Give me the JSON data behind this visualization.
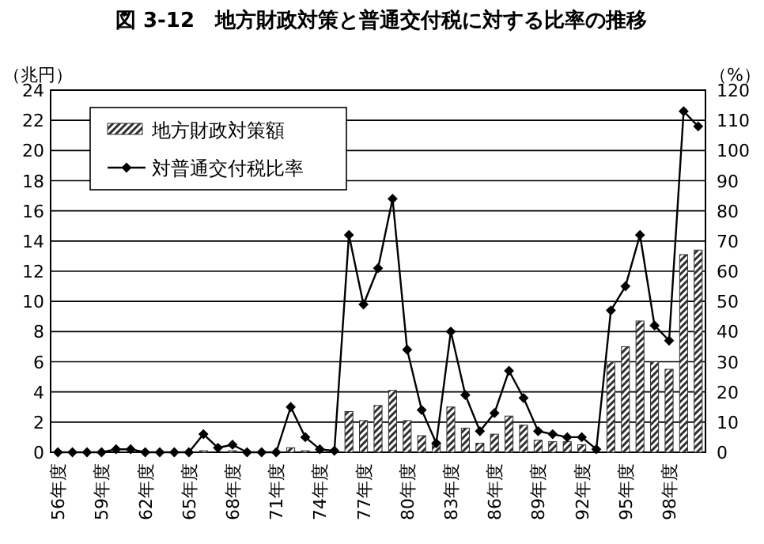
{
  "chart_data": {
    "type": "bar",
    "title": "図 3-12　地方財政対策と普通交付税に対する比率の推移",
    "ylabel": "（兆円）",
    "y2label": "（%）",
    "categories": [
      "56年度",
      null,
      null,
      "59年度",
      null,
      null,
      "62年度",
      null,
      null,
      "65年度",
      null,
      null,
      "68年度",
      null,
      null,
      "71年度",
      null,
      null,
      "74年度",
      null,
      null,
      "77年度",
      null,
      null,
      "80年度",
      null,
      null,
      "83年度",
      null,
      null,
      "86年度",
      null,
      null,
      "89年度",
      null,
      null,
      "92年度",
      null,
      null,
      "95年度",
      null,
      null,
      "98年度",
      null,
      null
    ],
    "series": [
      {
        "name": "地方財政対策額",
        "color": "#303030",
        "values": [
          0,
          0,
          0,
          0,
          0,
          0,
          0,
          0,
          0,
          0,
          0.1,
          0,
          0.1,
          0,
          0,
          0,
          0.3,
          0.1,
          null,
          null,
          2.7,
          2.1,
          3.1,
          4.1,
          2.1,
          1.1,
          0.6,
          3.0,
          1.6,
          0.6,
          1.2,
          2.4,
          1.8,
          0.8,
          0.7,
          0.7,
          0.5,
          null,
          6.0,
          7.0,
          8.7,
          6.0,
          5.5,
          13.1,
          13.4
        ]
      },
      {
        "name": "対普通交付税比率",
        "type": "line",
        "axis": "y2",
        "color": "#000000",
        "marker": "diamond",
        "values": [
          0,
          0,
          0,
          0,
          1,
          1,
          0,
          0,
          0,
          0,
          6,
          1.5,
          2.5,
          0,
          0,
          0,
          15,
          5,
          1,
          0.5,
          72,
          49,
          61,
          84,
          34,
          14,
          3,
          40,
          19,
          7,
          13,
          27,
          18,
          7,
          6,
          5,
          5,
          1,
          47,
          55,
          72,
          42,
          37,
          113,
          108
        ]
      }
    ],
    "ylim": [
      0,
      24
    ],
    "yticks": [
      0,
      2,
      4,
      6,
      8,
      10,
      12,
      14,
      16,
      18,
      20,
      22,
      24
    ],
    "y2lim": [
      0,
      120
    ],
    "y2ticks": [
      0,
      10,
      20,
      30,
      40,
      50,
      60,
      70,
      80,
      90,
      100,
      110,
      120
    ],
    "grid": "y",
    "legend": "top left"
  }
}
